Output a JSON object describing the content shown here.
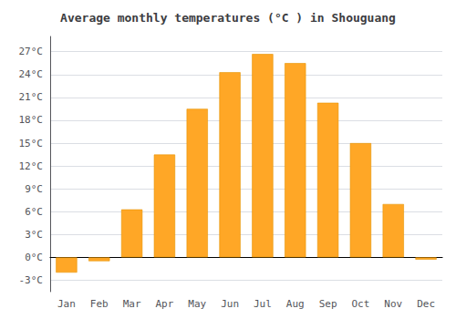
{
  "chart_data": {
    "type": "bar",
    "title": "Average monthly temperatures (°C ) in Shouguang",
    "categories": [
      "Jan",
      "Feb",
      "Mar",
      "Apr",
      "May",
      "Jun",
      "Jul",
      "Aug",
      "Sep",
      "Oct",
      "Nov",
      "Dec"
    ],
    "values": [
      -2.0,
      -0.5,
      6.3,
      13.5,
      19.5,
      24.3,
      26.7,
      25.5,
      20.3,
      15.0,
      7.0,
      -0.3
    ],
    "color": "#FFA726",
    "ylim": [
      -4.5,
      29
    ],
    "yticks": [
      {
        "value": -3,
        "label": "-3°C"
      },
      {
        "value": 0,
        "label": "0°C"
      },
      {
        "value": 3,
        "label": "3°C"
      },
      {
        "value": 6,
        "label": "6°C"
      },
      {
        "value": 9,
        "label": "9°C"
      },
      {
        "value": 12,
        "label": "12°C"
      },
      {
        "value": 15,
        "label": "15°C"
      },
      {
        "value": 18,
        "label": "18°C"
      },
      {
        "value": 21,
        "label": "21°C"
      },
      {
        "value": 24,
        "label": "24°C"
      },
      {
        "value": 27,
        "label": "27°C"
      }
    ],
    "grid": true
  }
}
